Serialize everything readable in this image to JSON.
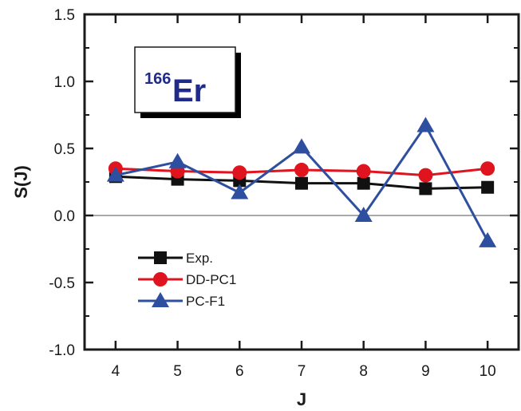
{
  "chart_data": {
    "type": "line",
    "xlabel": "J",
    "ylabel": "S(J)",
    "xlim": [
      3.5,
      10.5
    ],
    "ylim": [
      -1.0,
      1.5
    ],
    "x": [
      4,
      5,
      6,
      7,
      8,
      9,
      10
    ],
    "x_ticks": [
      "4",
      "5",
      "6",
      "7",
      "8",
      "9",
      "10"
    ],
    "y_ticks": [
      "-1.0",
      "-0.5",
      "0.0",
      "0.5",
      "1.0",
      "1.5"
    ],
    "y_tick_values": [
      -1.0,
      -0.5,
      0.0,
      0.5,
      1.0,
      1.5
    ],
    "zero_line": true,
    "grid": false,
    "legend_position": "bottom-left",
    "annotation": {
      "mass_number": "166",
      "element": "Er",
      "color": "#1f2a8a"
    },
    "series": [
      {
        "name": "Exp.",
        "color": "#111111",
        "marker": "square",
        "values": [
          0.29,
          0.27,
          0.26,
          0.24,
          0.24,
          0.2,
          0.21
        ]
      },
      {
        "name": "DD-PC1",
        "color": "#e0141e",
        "marker": "circle",
        "values": [
          0.35,
          0.33,
          0.32,
          0.34,
          0.33,
          0.3,
          0.35
        ]
      },
      {
        "name": "PC-F1",
        "color": "#2e4fa0",
        "marker": "triangle",
        "values": [
          0.3,
          0.4,
          0.17,
          0.51,
          0.0,
          0.67,
          -0.19
        ]
      }
    ]
  }
}
